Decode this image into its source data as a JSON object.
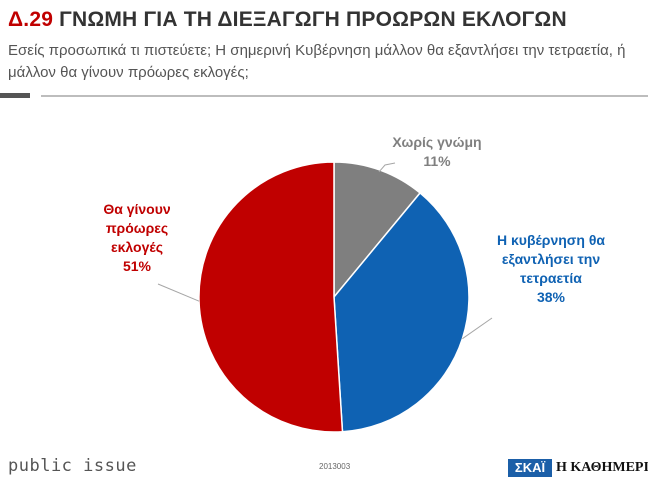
{
  "header": {
    "code": "Δ.29",
    "title": "ΓΝΩΜΗ ΓΙΑ ΤΗ ΔΙΕΞΑΓΩΓΗ ΠΡΟΩΡΩΝ ΕΚΛΟΓΩΝ",
    "subtitle": "Εσείς προσωπικά τι πιστεύετε; Η σημερινή Κυβέρνηση μάλλον θα εξαντλήσει την τετραετία, ή μάλλον θα γίνουν πρόωρες εκλογές;"
  },
  "chart_data": {
    "type": "pie",
    "slices": [
      {
        "label": "Χωρίς γνώμη",
        "value": 11,
        "color": "#7f7f7f"
      },
      {
        "label": "Η κυβέρνηση θα εξαντλήσει την τετραετία",
        "value": 38,
        "color": "#0f62b3"
      },
      {
        "label": "Θα γίνουν πρόωρες εκλογές",
        "value": 51,
        "color": "#c00000"
      }
    ],
    "data_labels": [
      {
        "lines": [
          "Χωρίς γνώμη"
        ],
        "pct": "11%",
        "color": "#7f7f7f"
      },
      {
        "lines": [
          "Η κυβέρνηση θα",
          "εξαντλήσει την",
          "τετραετία"
        ],
        "pct": "38%",
        "color": "#0f62b3"
      },
      {
        "lines": [
          "Θα γίνουν",
          "πρόωρες",
          "εκλογές"
        ],
        "pct": "51%",
        "color": "#c00000"
      }
    ]
  },
  "footer": {
    "brand": "public issue",
    "code": "2013003",
    "logo_left": "ΣΚΑΪ",
    "logo_right": "Η ΚΑΘΗΜΕΡΙΝΗ"
  }
}
